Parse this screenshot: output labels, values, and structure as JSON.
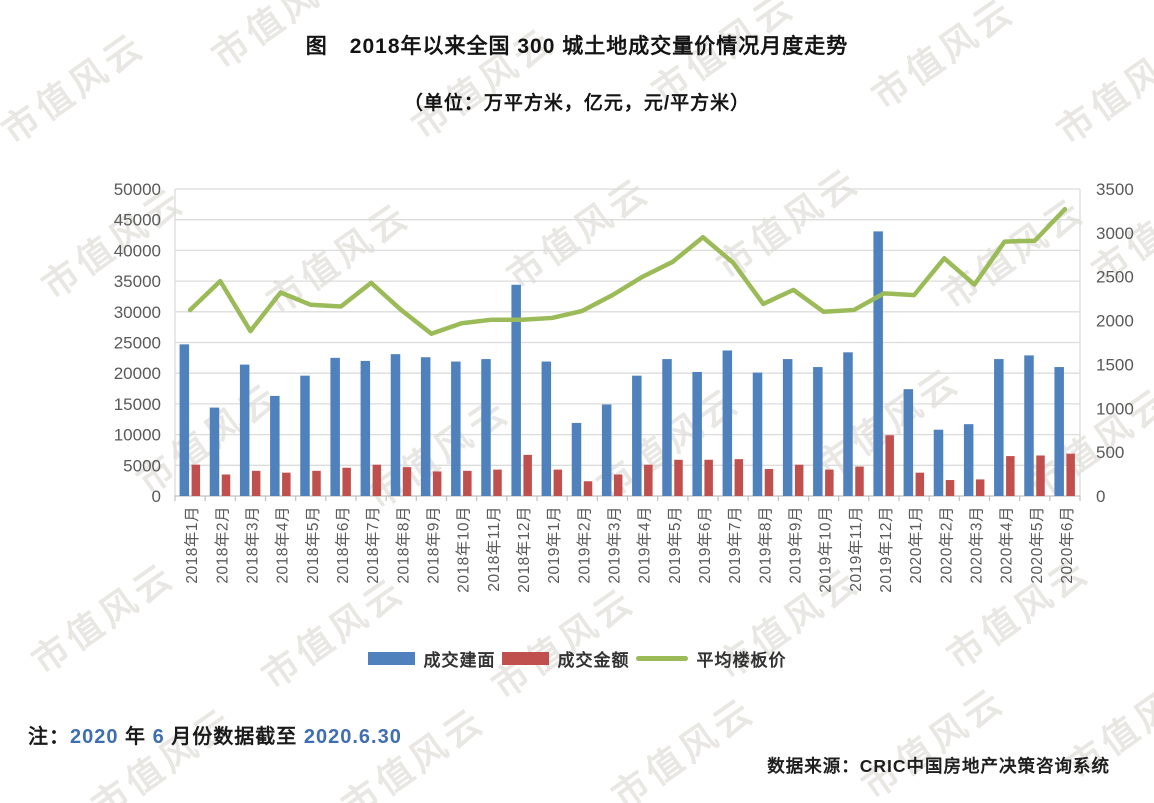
{
  "watermark": {
    "text": "市值风云"
  },
  "title": "图　2018年以来全国 300 城土地成交量价情况月度走势",
  "subtitle": "（单位：万平方米，亿元，元/平方米）",
  "chart_data": {
    "type": "bar",
    "subtype": "grouped-bars-with-line-dual-axis",
    "categories": [
      "2018年1月",
      "2018年2月",
      "2018年3月",
      "2018年4月",
      "2018年5月",
      "2018年6月",
      "2018年7月",
      "2018年8月",
      "2018年9月",
      "2018年10月",
      "2018年11月",
      "2018年12月",
      "2019年1月",
      "2019年2月",
      "2019年3月",
      "2019年4月",
      "2019年5月",
      "2019年6月",
      "2019年7月",
      "2019年8月",
      "2019年9月",
      "2019年10月",
      "2019年11月",
      "2019年12月",
      "2020年1月",
      "2020年2月",
      "2020年3月",
      "2020年4月",
      "2020年5月",
      "2020年6月"
    ],
    "series": [
      {
        "name": "成交建面",
        "type": "bar",
        "axis": "left",
        "color": "#4F81BD",
        "values": [
          24700,
          14400,
          21400,
          16300,
          19600,
          22500,
          22000,
          23100,
          22600,
          21900,
          22300,
          34400,
          21900,
          11900,
          14900,
          19600,
          22300,
          20200,
          23700,
          20100,
          22300,
          21000,
          23400,
          43100,
          17400,
          10800,
          11700,
          22300,
          22900,
          21000
        ]
      },
      {
        "name": "成交金额",
        "type": "bar",
        "axis": "left",
        "color": "#C0504D",
        "values": [
          5100,
          3500,
          4100,
          3800,
          4100,
          4600,
          5100,
          4700,
          4000,
          4100,
          4300,
          6700,
          4300,
          2400,
          3500,
          5100,
          5900,
          5900,
          6000,
          4400,
          5100,
          4300,
          4800,
          9900,
          3800,
          2600,
          2700,
          6500,
          6600,
          6900
        ]
      },
      {
        "name": "平均楼板价",
        "type": "line",
        "axis": "right",
        "color": "#9BBB59",
        "values": [
          2120,
          2450,
          1880,
          2320,
          2180,
          2160,
          2430,
          2120,
          1850,
          1970,
          2010,
          2010,
          2030,
          2110,
          2290,
          2500,
          2670,
          2950,
          2660,
          2190,
          2350,
          2100,
          2120,
          2310,
          2290,
          2710,
          2410,
          2900,
          2910,
          3270
        ]
      }
    ],
    "y_left": {
      "min": 0,
      "max": 50000,
      "step": 5000,
      "ticks": [
        "0",
        "5000",
        "10000",
        "15000",
        "20000",
        "25000",
        "30000",
        "35000",
        "40000",
        "45000",
        "50000"
      ]
    },
    "y_right": {
      "min": 0,
      "max": 3500,
      "step": 500,
      "ticks": [
        "0",
        "500",
        "1000",
        "1500",
        "2000",
        "2500",
        "3000",
        "3500"
      ]
    },
    "grid": true,
    "legend_position": "bottom",
    "grid_color": "#dcdcdc",
    "axis_text_color": "#595959"
  },
  "note": {
    "label": "注：",
    "parts": [
      {
        "t": "2020",
        "accent": true
      },
      {
        "t": " 年 "
      },
      {
        "t": "6",
        "accent": true
      },
      {
        "t": " 月份数据截至 "
      },
      {
        "t": "2020.6.30",
        "accent": true
      }
    ],
    "full_text": "注：2020 年 6 月份数据截至 2020.6.30"
  },
  "source": "数据来源：CRIC中国房地产决策咨询系统"
}
